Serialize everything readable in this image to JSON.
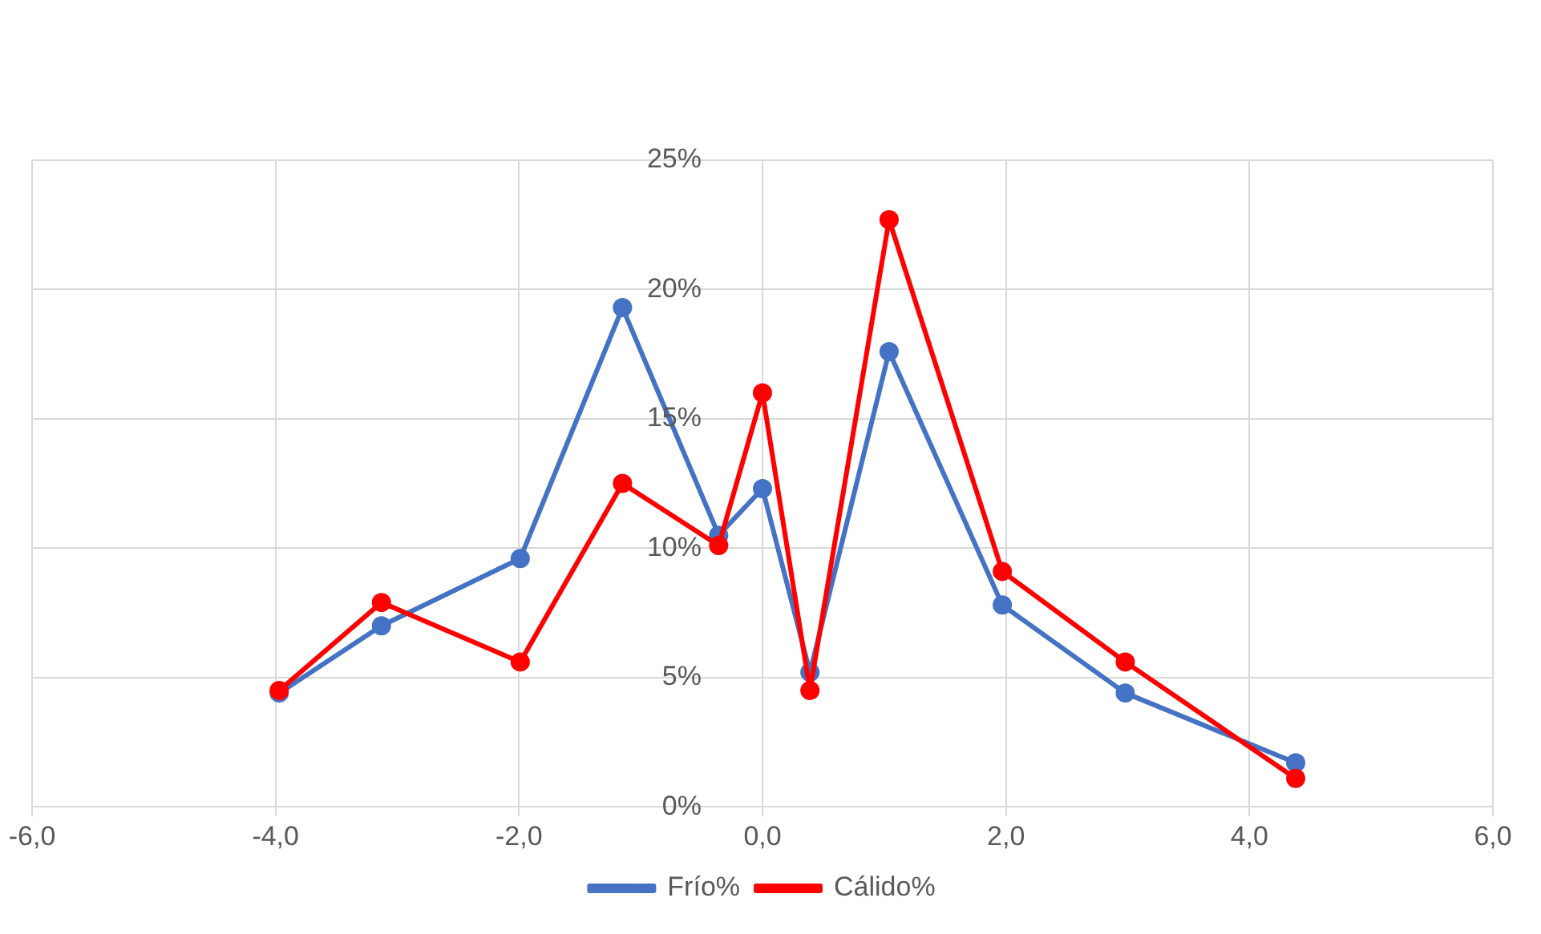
{
  "chart_data": {
    "type": "line",
    "x": [
      -3.97,
      -3.13,
      -1.99,
      -1.15,
      -0.36,
      0.0,
      0.39,
      1.04,
      1.97,
      2.98,
      4.38
    ],
    "series": [
      {
        "name": "Frío%",
        "color": "#4472c4",
        "values": [
          4.4,
          7.0,
          9.6,
          19.3,
          10.5,
          12.3,
          5.2,
          17.6,
          7.8,
          4.4,
          1.7
        ]
      },
      {
        "name": "Cálido%",
        "color": "#ff0000",
        "values": [
          4.5,
          7.9,
          5.6,
          12.5,
          10.1,
          16.0,
          4.5,
          22.7,
          9.1,
          5.6,
          1.1
        ]
      }
    ],
    "xlim": [
      -6,
      6
    ],
    "xticks": [
      {
        "value": -6,
        "label": "-6,0"
      },
      {
        "value": -4,
        "label": "-4,0"
      },
      {
        "value": -2,
        "label": "-2,0"
      },
      {
        "value": 0,
        "label": "0,0"
      },
      {
        "value": 2,
        "label": "2,0"
      },
      {
        "value": 4,
        "label": "4,0"
      },
      {
        "value": 6,
        "label": "6,0"
      }
    ],
    "ylim": [
      0,
      25
    ],
    "yticks": [
      {
        "value": 0,
        "label": "0%"
      },
      {
        "value": 5,
        "label": "5%"
      },
      {
        "value": 10,
        "label": "10%"
      },
      {
        "value": 15,
        "label": "15%"
      },
      {
        "value": 20,
        "label": "20%"
      },
      {
        "value": 25,
        "label": "25%"
      }
    ],
    "grid": true,
    "legend": "bottom",
    "marker": "circle",
    "line_style": "solid"
  }
}
